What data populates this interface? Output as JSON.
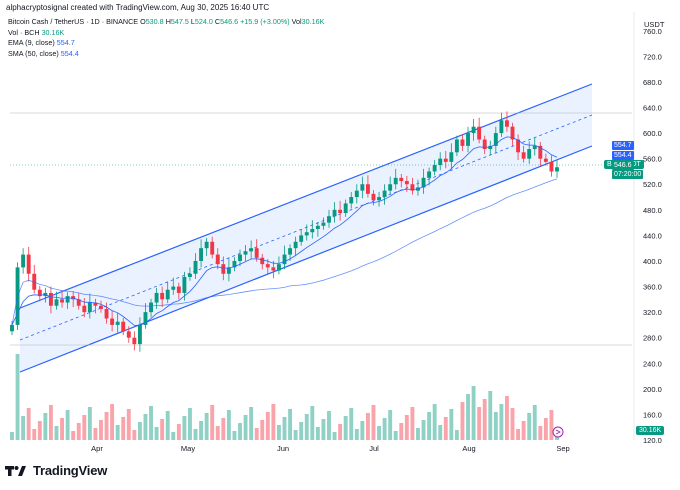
{
  "header": {
    "credit": "alphacryptosignal created with TradingView.com, Aug 30, 2025 16:40 UTC"
  },
  "legend": {
    "symbol": "Bitcoin Cash / TetherUS · 1D · BINANCE",
    "o_label": "O",
    "o_value": "530.8",
    "h_label": "H",
    "h_value": "547.5",
    "l_label": "L",
    "l_value": "524.0",
    "c_label": "C",
    "c_value": "546.6",
    "change": "+15.9 (+3.00%)",
    "vol_label": "Vol",
    "vol_value": "30.16K",
    "vol_row_label": "Vol · BCH",
    "vol_row_value": "30.16K",
    "ema_label": "EMA (9, close)",
    "ema_value": "554.7",
    "sma_label": "SMA (50, close)",
    "sma_value": "554.4"
  },
  "axis": {
    "currency": "USDT",
    "price_ticks": [
      "760.0",
      "720.0",
      "680.0",
      "640.0",
      "600.0",
      "560.0",
      "520.0",
      "480.0",
      "440.0",
      "400.0",
      "360.0",
      "320.0",
      "280.0",
      "240.0",
      "200.0",
      "160.0",
      "120.0"
    ],
    "months": [
      "Apr",
      "May",
      "Jun",
      "Jul",
      "Aug",
      "Sep"
    ]
  },
  "price_tags": {
    "ema": "554.7",
    "sma": "554.4",
    "last": "546.6",
    "countdown": "07:20:00",
    "ticker": "BCHUSDT",
    "volume": "30.16K"
  },
  "logo": {
    "text": "TradingView"
  },
  "colors": {
    "up": "#089981",
    "down": "#f23645",
    "channel": "#2962ff",
    "ema": "#2962ff",
    "sma": "#2962ff"
  },
  "chart_data": {
    "type": "candlestick",
    "symbol": "BCHUSDT",
    "timeframe": "1D",
    "ylim": [
      120,
      780
    ],
    "x_ticks": [
      "Apr",
      "May",
      "Jun",
      "Jul",
      "Aug",
      "Sep"
    ],
    "closes": [
      300,
      390,
      410,
      380,
      355,
      345,
      350,
      330,
      340,
      335,
      345,
      340,
      330,
      320,
      335,
      330,
      325,
      310,
      300,
      305,
      290,
      280,
      270,
      300,
      320,
      335,
      350,
      340,
      355,
      360,
      350,
      375,
      380,
      400,
      420,
      430,
      410,
      395,
      380,
      390,
      400,
      410,
      415,
      420,
      405,
      395,
      390,
      385,
      395,
      410,
      420,
      430,
      440,
      445,
      450,
      455,
      460,
      470,
      480,
      475,
      490,
      500,
      510,
      520,
      505,
      495,
      500,
      510,
      520,
      530,
      525,
      520,
      510,
      515,
      530,
      540,
      550,
      560,
      555,
      570,
      590,
      580,
      600,
      610,
      590,
      575,
      580,
      600,
      620,
      610,
      590,
      570,
      560,
      575,
      580,
      560,
      555,
      540,
      546.6
    ],
    "volume_last": "30.16K"
  }
}
